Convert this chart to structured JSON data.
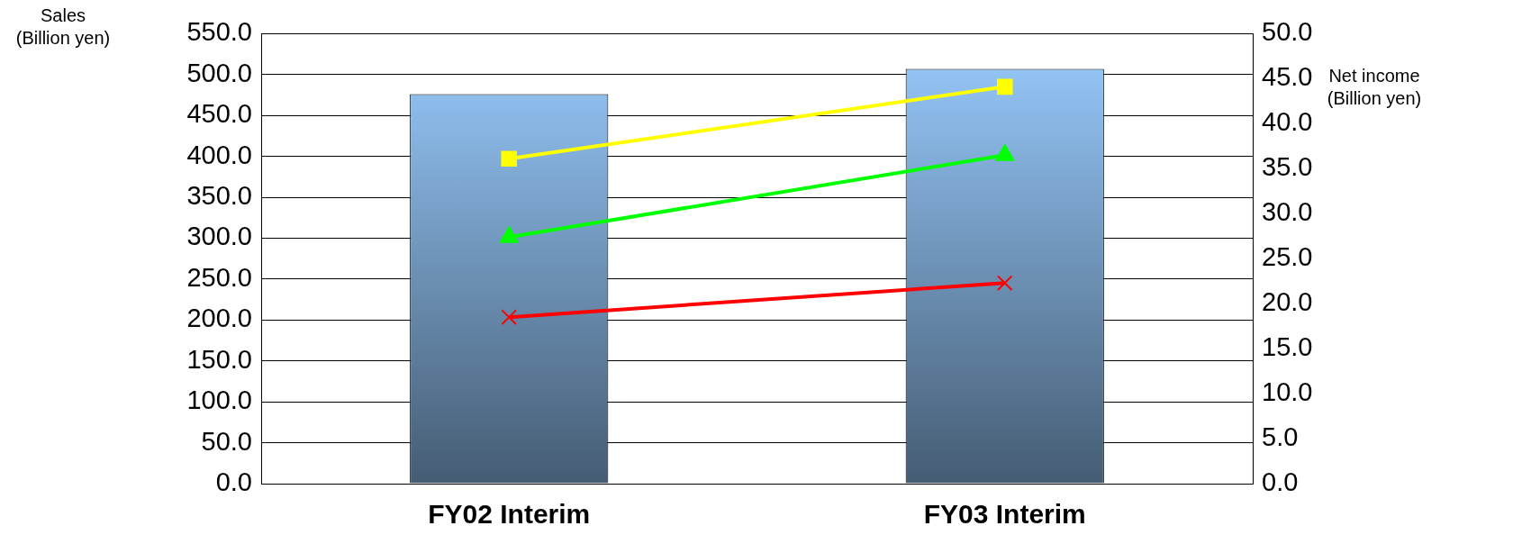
{
  "chart_data": {
    "type": "bar",
    "categories": [
      "FY02 Interim",
      "FY03 Interim"
    ],
    "ylabel": "Sales\n(Billion yen)",
    "y2label": "Net income\n(Billion yen)",
    "series": [
      {
        "color": "#99ccff",
        "values": [
          476,
          507
        ]
      },
      {
        "type": "line",
        "axis": "y2",
        "color": "#ffff00",
        "marker": "square",
        "values": [
          36.1,
          44.1
        ]
      },
      {
        "type": "line",
        "axis": "y2",
        "color": "#00ff00",
        "marker": "triangle",
        "values": [
          27.4,
          36.5
        ]
      },
      {
        "type": "line",
        "axis": "y2",
        "color": "#ff0000",
        "marker": "cross",
        "values": [
          18.5,
          22.3
        ]
      }
    ],
    "ylim": [
      0,
      550
    ],
    "yticks": [
      {
        "value": 0,
        "label": "0.0"
      },
      {
        "value": 50,
        "label": "50.0"
      },
      {
        "value": 100,
        "label": "100.0"
      },
      {
        "value": 150,
        "label": "150.0"
      },
      {
        "value": 200,
        "label": "200.0"
      },
      {
        "value": 250,
        "label": "250.0"
      },
      {
        "value": 300,
        "label": "300.0"
      },
      {
        "value": 350,
        "label": "350.0"
      },
      {
        "value": 400,
        "label": "400.0"
      },
      {
        "value": 450,
        "label": "450.0"
      },
      {
        "value": 500,
        "label": "500.0"
      },
      {
        "value": 550,
        "label": "550.0"
      }
    ],
    "y2lim": [
      0,
      50
    ],
    "y2ticks": [
      {
        "value": 0,
        "label": "0.0"
      },
      {
        "value": 5,
        "label": "5.0"
      },
      {
        "value": 10,
        "label": "10.0"
      },
      {
        "value": 15,
        "label": "15.0"
      },
      {
        "value": 20,
        "label": "20.0"
      },
      {
        "value": 25,
        "label": "25.0"
      },
      {
        "value": 30,
        "label": "30.0"
      },
      {
        "value": 35,
        "label": "35.0"
      },
      {
        "value": 40,
        "label": "40.0"
      },
      {
        "value": 45,
        "label": "45.0"
      },
      {
        "value": 50,
        "label": "50.0"
      }
    ],
    "grid": "y",
    "legend": false
  }
}
